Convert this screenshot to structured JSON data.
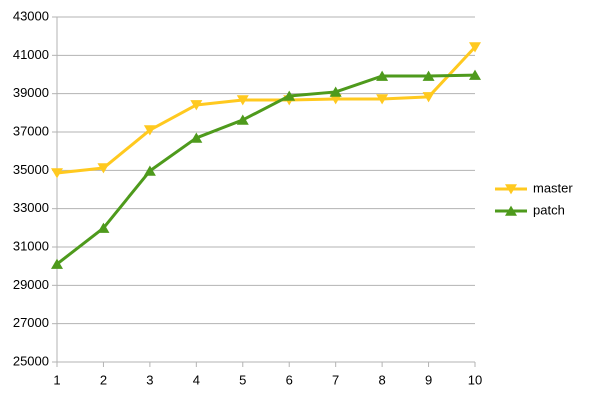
{
  "chart_data": {
    "type": "line",
    "x": [
      1,
      2,
      3,
      4,
      5,
      6,
      7,
      8,
      9,
      10
    ],
    "series": [
      {
        "name": "master",
        "color": "#ffc91f",
        "marker": "triangle-down",
        "values": [
          34860,
          35120,
          37100,
          38410,
          38670,
          38670,
          38720,
          38720,
          38830,
          41430
        ]
      },
      {
        "name": "patch",
        "color": "#4e9a1c",
        "marker": "triangle-up",
        "values": [
          30110,
          31990,
          34970,
          36690,
          37630,
          38880,
          39090,
          39920,
          39920,
          39970
        ]
      }
    ],
    "xlim": [
      1,
      10
    ],
    "xticks": [
      1,
      2,
      3,
      4,
      5,
      6,
      7,
      8,
      9,
      10
    ],
    "ylim": [
      25000,
      43000
    ],
    "yticks": [
      25000,
      27000,
      29000,
      31000,
      33000,
      35000,
      37000,
      39000,
      41000,
      43000
    ],
    "grid": true,
    "legend": "right"
  }
}
